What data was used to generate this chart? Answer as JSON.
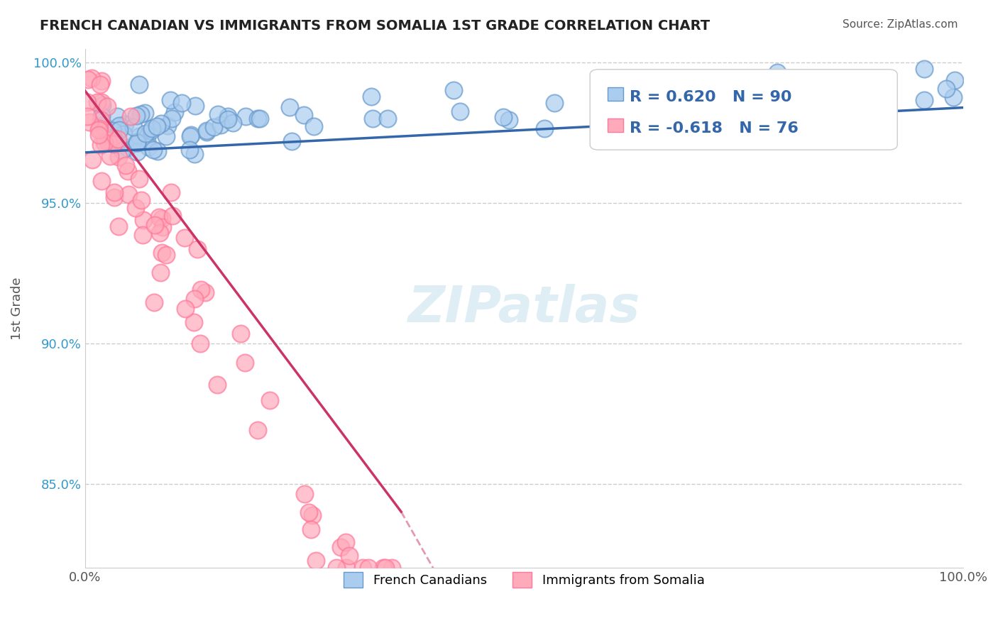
{
  "title": "FRENCH CANADIAN VS IMMIGRANTS FROM SOMALIA 1ST GRADE CORRELATION CHART",
  "source": "Source: ZipAtlas.com",
  "xlabel": "",
  "ylabel": "1st Grade",
  "xlim": [
    0.0,
    1.0
  ],
  "ylim": [
    0.82,
    1.005
  ],
  "blue_color": "#6699CC",
  "pink_color": "#FF7799",
  "blue_r": 0.62,
  "blue_n": 90,
  "pink_r": -0.618,
  "pink_n": 76,
  "blue_label": "French Canadians",
  "pink_label": "Immigrants from Somalia",
  "watermark": "ZIPatlas",
  "yticks": [
    0.85,
    0.9,
    0.95,
    1.0
  ],
  "ytick_labels": [
    "85.0%",
    "90.0%",
    "95.0%",
    "100.0%"
  ],
  "xtick_labels": [
    "0.0%",
    "100.0%"
  ],
  "xticks": [
    0.0,
    1.0
  ],
  "background_color": "#ffffff"
}
